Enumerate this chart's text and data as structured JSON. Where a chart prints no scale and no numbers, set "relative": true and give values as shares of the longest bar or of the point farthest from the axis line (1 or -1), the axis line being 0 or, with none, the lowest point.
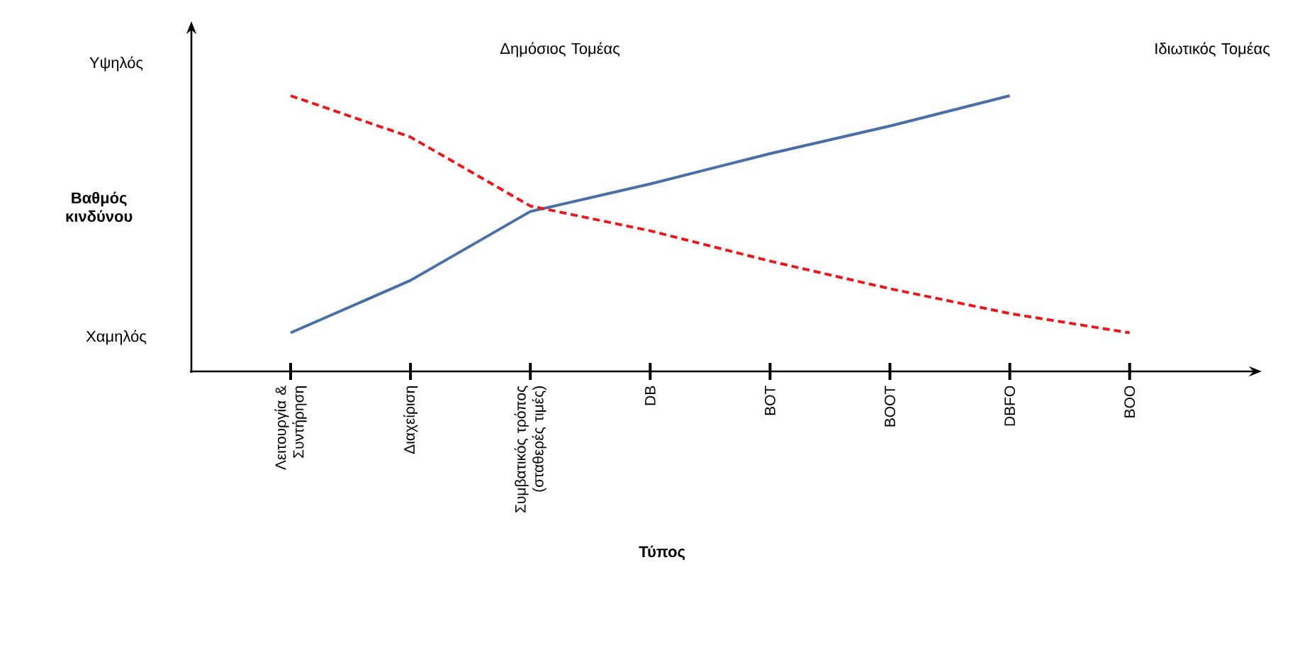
{
  "chart_data": {
    "type": "line",
    "xlabel": "Τύπος",
    "ylabel": "Βαθμός κινδύνου",
    "relative": true,
    "marker": "none",
    "categories": [
      "Λειτουργία & Συντήρηση",
      "Διαχείριση",
      "Συμβατικός τρόπος (σταθερές τιμές)",
      "DB",
      "BOT",
      "BOOT",
      "DBFO",
      "BOO"
    ],
    "series": [
      {
        "color": "#4a6fa5",
        "line_style": "solid",
        "values": [
          0.14,
          0.33,
          0.58,
          0.68,
          0.79,
          0.89,
          1,
          null
        ]
      },
      {
        "color": "#e8191c",
        "line_style": "dashed",
        "values": [
          1,
          0.85,
          0.6,
          0.51,
          0.4,
          0.3,
          0.21,
          0.14
        ]
      }
    ],
    "annotations": [
      "Υψηλός",
      "Χαμηλός",
      "Δημόσιος Τομέας",
      "Ιδιωτικός Τομέας"
    ]
  }
}
